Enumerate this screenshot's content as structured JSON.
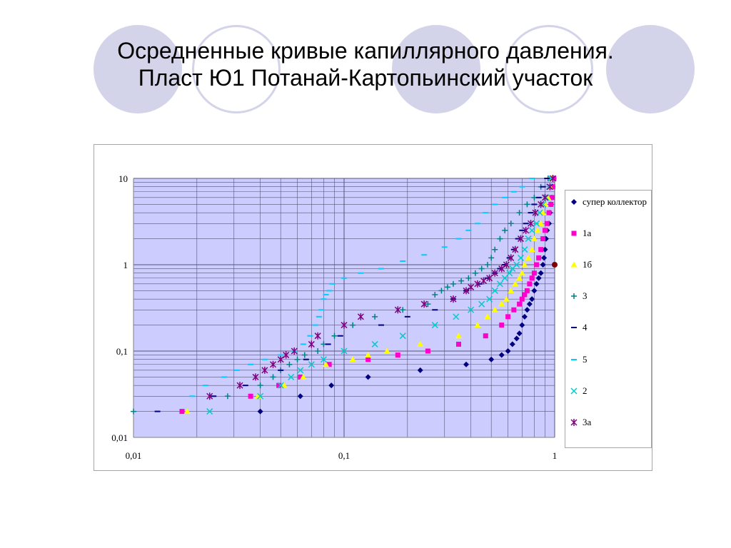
{
  "slide": {
    "title_line1": "Осредненные кривые капиллярного давления.",
    "title_line2": "Пласт Ю1 Потанай-Картопьинский участок"
  },
  "colors": {
    "deco_circle": "#d3d3ea",
    "plot_background": "#ccccff",
    "grid": "#555577"
  },
  "chart_data": {
    "type": "scatter",
    "title": "",
    "xlabel": "",
    "ylabel": "",
    "x_scale": "log",
    "y_scale": "log",
    "xlim": [
      0.01,
      1
    ],
    "ylim": [
      0.01,
      10
    ],
    "x_ticks": [
      "0,01",
      "0,1",
      "1"
    ],
    "y_ticks": [
      "0,01",
      "0,1",
      "1",
      "10"
    ],
    "grid": true,
    "legend_position": "right",
    "series": [
      {
        "name": "супер коллектор",
        "marker": "diamond",
        "color": "#000080",
        "points": [
          [
            0.04,
            0.02
          ],
          [
            0.062,
            0.03
          ],
          [
            0.087,
            0.04
          ],
          [
            0.13,
            0.05
          ],
          [
            0.23,
            0.06
          ],
          [
            0.38,
            0.07
          ],
          [
            0.5,
            0.08
          ],
          [
            0.56,
            0.09
          ],
          [
            0.6,
            0.1
          ],
          [
            0.63,
            0.12
          ],
          [
            0.66,
            0.14
          ],
          [
            0.68,
            0.16
          ],
          [
            0.7,
            0.2
          ],
          [
            0.72,
            0.25
          ],
          [
            0.74,
            0.3
          ],
          [
            0.76,
            0.35
          ],
          [
            0.78,
            0.4
          ],
          [
            0.8,
            0.5
          ],
          [
            0.82,
            0.6
          ],
          [
            0.84,
            0.7
          ],
          [
            0.86,
            0.8
          ],
          [
            0.88,
            1.0
          ],
          [
            0.89,
            1.2
          ],
          [
            0.9,
            1.5
          ],
          [
            0.91,
            2.0
          ],
          [
            0.92,
            2.5
          ],
          [
            0.94,
            3.0
          ],
          [
            0.95,
            4.0
          ],
          [
            0.96,
            5.0
          ],
          [
            0.97,
            6.0
          ],
          [
            0.98,
            8.0
          ],
          [
            0.99,
            10.0
          ]
        ]
      },
      {
        "name": "1а",
        "marker": "square",
        "color": "#ff00cc",
        "points": [
          [
            0.017,
            0.02
          ],
          [
            0.036,
            0.03
          ],
          [
            0.049,
            0.04
          ],
          [
            0.062,
            0.05
          ],
          [
            0.085,
            0.07
          ],
          [
            0.13,
            0.08
          ],
          [
            0.18,
            0.09
          ],
          [
            0.25,
            0.1
          ],
          [
            0.35,
            0.12
          ],
          [
            0.47,
            0.15
          ],
          [
            0.56,
            0.2
          ],
          [
            0.6,
            0.25
          ],
          [
            0.64,
            0.3
          ],
          [
            0.68,
            0.35
          ],
          [
            0.7,
            0.4
          ],
          [
            0.72,
            0.45
          ],
          [
            0.74,
            0.5
          ],
          [
            0.76,
            0.6
          ],
          [
            0.78,
            0.7
          ],
          [
            0.8,
            0.8
          ],
          [
            0.82,
            1.0
          ],
          [
            0.84,
            1.2
          ],
          [
            0.86,
            1.5
          ],
          [
            0.88,
            2.0
          ],
          [
            0.9,
            2.5
          ],
          [
            0.92,
            3.0
          ],
          [
            0.94,
            4.0
          ],
          [
            0.96,
            5.0
          ],
          [
            0.97,
            6.0
          ],
          [
            0.98,
            8.0
          ],
          [
            0.99,
            10.0
          ]
        ]
      },
      {
        "name": "1б",
        "marker": "triangle",
        "color": "#ffff00",
        "points": [
          [
            0.018,
            0.02
          ],
          [
            0.039,
            0.03
          ],
          [
            0.052,
            0.04
          ],
          [
            0.064,
            0.05
          ],
          [
            0.082,
            0.07
          ],
          [
            0.11,
            0.08
          ],
          [
            0.13,
            0.09
          ],
          [
            0.16,
            0.1
          ],
          [
            0.23,
            0.12
          ],
          [
            0.35,
            0.15
          ],
          [
            0.43,
            0.2
          ],
          [
            0.48,
            0.25
          ],
          [
            0.52,
            0.3
          ],
          [
            0.56,
            0.35
          ],
          [
            0.59,
            0.4
          ],
          [
            0.62,
            0.5
          ],
          [
            0.65,
            0.6
          ],
          [
            0.68,
            0.7
          ],
          [
            0.7,
            0.8
          ],
          [
            0.72,
            1.0
          ],
          [
            0.75,
            1.2
          ],
          [
            0.78,
            1.5
          ],
          [
            0.8,
            2.0
          ],
          [
            0.83,
            2.5
          ],
          [
            0.86,
            3.0
          ],
          [
            0.88,
            4.0
          ],
          [
            0.9,
            5.0
          ],
          [
            0.93,
            6.0
          ],
          [
            0.95,
            8.0
          ],
          [
            0.97,
            10.0
          ]
        ]
      },
      {
        "name": "3",
        "marker": "plus",
        "color": "#008080",
        "points": [
          [
            0.01,
            0.02
          ],
          [
            0.028,
            0.03
          ],
          [
            0.04,
            0.04
          ],
          [
            0.046,
            0.05
          ],
          [
            0.05,
            0.06
          ],
          [
            0.055,
            0.07
          ],
          [
            0.06,
            0.08
          ],
          [
            0.065,
            0.09
          ],
          [
            0.075,
            0.1
          ],
          [
            0.08,
            0.12
          ],
          [
            0.09,
            0.15
          ],
          [
            0.11,
            0.2
          ],
          [
            0.14,
            0.25
          ],
          [
            0.19,
            0.3
          ],
          [
            0.25,
            0.35
          ],
          [
            0.27,
            0.45
          ],
          [
            0.29,
            0.5
          ],
          [
            0.31,
            0.55
          ],
          [
            0.33,
            0.6
          ],
          [
            0.36,
            0.65
          ],
          [
            0.39,
            0.7
          ],
          [
            0.42,
            0.8
          ],
          [
            0.45,
            0.9
          ],
          [
            0.48,
            1.0
          ],
          [
            0.5,
            1.2
          ],
          [
            0.52,
            1.5
          ],
          [
            0.55,
            2.0
          ],
          [
            0.58,
            2.5
          ],
          [
            0.62,
            3.0
          ],
          [
            0.68,
            4.0
          ],
          [
            0.74,
            5.0
          ],
          [
            0.8,
            6.0
          ],
          [
            0.86,
            8.0
          ],
          [
            0.93,
            10.0
          ]
        ]
      },
      {
        "name": "4",
        "marker": "dash",
        "color": "#000080",
        "points": [
          [
            0.013,
            0.02
          ],
          [
            0.024,
            0.03
          ],
          [
            0.034,
            0.04
          ],
          [
            0.05,
            0.06
          ],
          [
            0.066,
            0.08
          ],
          [
            0.084,
            0.12
          ],
          [
            0.096,
            0.15
          ],
          [
            0.15,
            0.2
          ],
          [
            0.2,
            0.25
          ],
          [
            0.27,
            0.3
          ],
          [
            0.33,
            0.4
          ],
          [
            0.38,
            0.5
          ],
          [
            0.44,
            0.6
          ],
          [
            0.48,
            0.7
          ],
          [
            0.52,
            0.8
          ],
          [
            0.55,
            0.9
          ],
          [
            0.58,
            1.0
          ],
          [
            0.61,
            1.2
          ],
          [
            0.64,
            1.5
          ],
          [
            0.67,
            2.0
          ],
          [
            0.7,
            2.5
          ],
          [
            0.73,
            3.0
          ],
          [
            0.77,
            4.0
          ],
          [
            0.8,
            5.0
          ],
          [
            0.84,
            6.0
          ],
          [
            0.88,
            8.0
          ],
          [
            0.92,
            10.0
          ]
        ]
      },
      {
        "name": "5",
        "marker": "dash",
        "color": "#00ccff",
        "points": [
          [
            0.019,
            0.03
          ],
          [
            0.022,
            0.04
          ],
          [
            0.027,
            0.05
          ],
          [
            0.031,
            0.06
          ],
          [
            0.036,
            0.07
          ],
          [
            0.042,
            0.08
          ],
          [
            0.05,
            0.09
          ],
          [
            0.058,
            0.1
          ],
          [
            0.064,
            0.12
          ],
          [
            0.069,
            0.15
          ],
          [
            0.073,
            0.2
          ],
          [
            0.076,
            0.25
          ],
          [
            0.078,
            0.3
          ],
          [
            0.08,
            0.4
          ],
          [
            0.082,
            0.45
          ],
          [
            0.085,
            0.5
          ],
          [
            0.088,
            0.6
          ],
          [
            0.1,
            0.7
          ],
          [
            0.12,
            0.8
          ],
          [
            0.15,
            0.9
          ],
          [
            0.19,
            1.1
          ],
          [
            0.24,
            1.3
          ],
          [
            0.3,
            1.6
          ],
          [
            0.35,
            2.0
          ],
          [
            0.39,
            2.5
          ],
          [
            0.43,
            3.0
          ],
          [
            0.47,
            4.0
          ],
          [
            0.52,
            5.0
          ],
          [
            0.58,
            6.0
          ],
          [
            0.64,
            7.0
          ],
          [
            0.7,
            8.0
          ],
          [
            0.78,
            10.0
          ]
        ]
      },
      {
        "name": "2",
        "marker": "x",
        "color": "#00cccc",
        "points": [
          [
            0.023,
            0.02
          ],
          [
            0.04,
            0.03
          ],
          [
            0.05,
            0.04
          ],
          [
            0.056,
            0.05
          ],
          [
            0.062,
            0.06
          ],
          [
            0.07,
            0.07
          ],
          [
            0.08,
            0.08
          ],
          [
            0.1,
            0.1
          ],
          [
            0.14,
            0.12
          ],
          [
            0.19,
            0.15
          ],
          [
            0.27,
            0.2
          ],
          [
            0.34,
            0.25
          ],
          [
            0.4,
            0.3
          ],
          [
            0.45,
            0.35
          ],
          [
            0.49,
            0.4
          ],
          [
            0.52,
            0.5
          ],
          [
            0.55,
            0.6
          ],
          [
            0.58,
            0.7
          ],
          [
            0.61,
            0.8
          ],
          [
            0.63,
            0.9
          ],
          [
            0.66,
            1.0
          ],
          [
            0.69,
            1.2
          ],
          [
            0.72,
            1.5
          ],
          [
            0.75,
            2.0
          ],
          [
            0.78,
            2.5
          ],
          [
            0.82,
            3.0
          ],
          [
            0.85,
            4.0
          ],
          [
            0.88,
            5.0
          ],
          [
            0.91,
            6.0
          ],
          [
            0.94,
            8.0
          ],
          [
            0.96,
            10.0
          ]
        ]
      },
      {
        "name": "3а",
        "marker": "asterisk",
        "color": "#800080",
        "points": [
          [
            0.023,
            0.03
          ],
          [
            0.032,
            0.04
          ],
          [
            0.038,
            0.05
          ],
          [
            0.042,
            0.06
          ],
          [
            0.046,
            0.07
          ],
          [
            0.05,
            0.08
          ],
          [
            0.053,
            0.09
          ],
          [
            0.058,
            0.1
          ],
          [
            0.07,
            0.12
          ],
          [
            0.075,
            0.15
          ],
          [
            0.1,
            0.2
          ],
          [
            0.12,
            0.25
          ],
          [
            0.18,
            0.3
          ],
          [
            0.24,
            0.35
          ],
          [
            0.33,
            0.4
          ],
          [
            0.38,
            0.5
          ],
          [
            0.4,
            0.55
          ],
          [
            0.43,
            0.6
          ],
          [
            0.46,
            0.65
          ],
          [
            0.49,
            0.7
          ],
          [
            0.52,
            0.8
          ],
          [
            0.56,
            0.9
          ],
          [
            0.59,
            1.0
          ],
          [
            0.62,
            1.2
          ],
          [
            0.65,
            1.5
          ],
          [
            0.69,
            2.0
          ],
          [
            0.73,
            2.5
          ],
          [
            0.77,
            3.0
          ],
          [
            0.81,
            4.0
          ],
          [
            0.86,
            5.0
          ],
          [
            0.9,
            6.0
          ],
          [
            0.95,
            8.0
          ],
          [
            0.98,
            10.0
          ]
        ]
      }
    ],
    "extra_points": [
      {
        "x": 1,
        "y": 1,
        "marker": "circle",
        "color": "#800000"
      }
    ]
  }
}
